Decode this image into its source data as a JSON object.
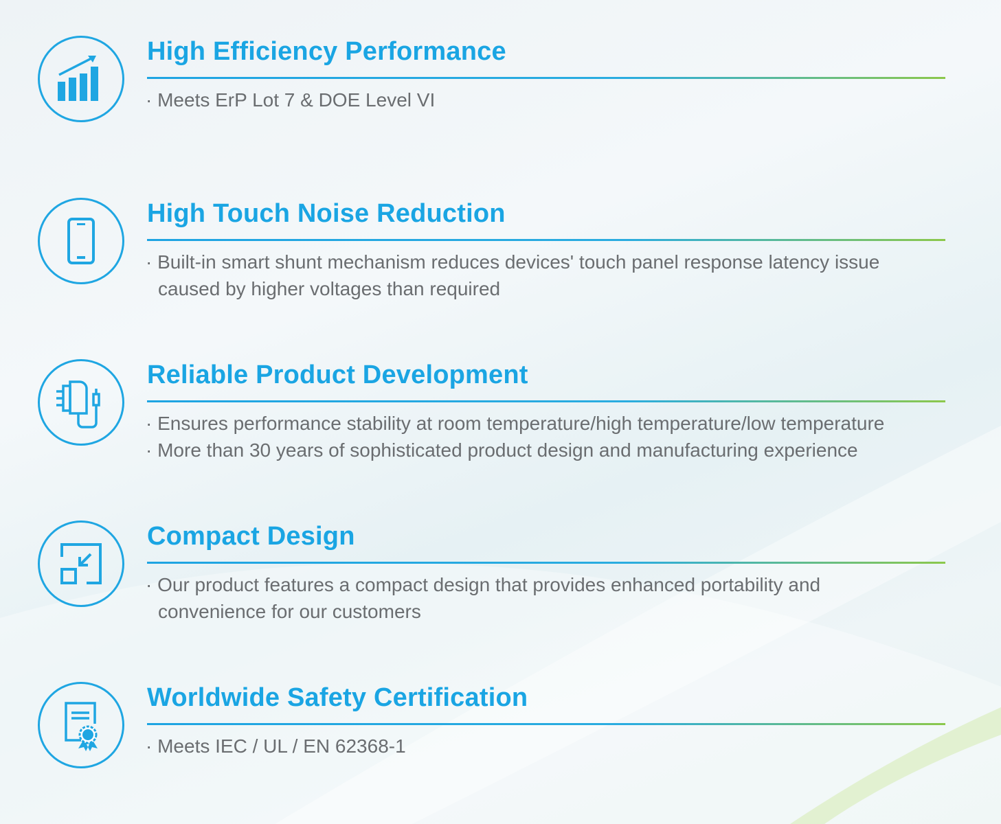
{
  "colors": {
    "accent": "#1aa5e3",
    "text": "#6a6d70",
    "rule_end": "#8cc84b"
  },
  "features": [
    {
      "icon": "growth-chart-icon",
      "title": "High Efficiency Performance",
      "lines": [
        "· Meets ErP Lot 7 & DOE Level VI"
      ]
    },
    {
      "icon": "smartphone-icon",
      "title": "High Touch Noise Reduction",
      "lines": [
        "· Built-in smart shunt mechanism reduces devices' touch panel response latency issue",
        "caused by higher voltages than required"
      ]
    },
    {
      "icon": "charger-adapter-icon",
      "title": "Reliable Product Development",
      "lines": [
        "· Ensures performance stability at room temperature/high temperature/low temperature",
        "· More than 30 years of sophisticated product  design and manufacturing experience"
      ]
    },
    {
      "icon": "compact-resize-icon",
      "title": "Compact Design",
      "lines": [
        "· Our product features a compact design that provides enhanced portability and",
        "convenience for our customers"
      ]
    },
    {
      "icon": "certificate-icon",
      "title": "Worldwide Safety Certification",
      "lines": [
        "· Meets IEC / UL / EN 62368-1"
      ]
    }
  ]
}
